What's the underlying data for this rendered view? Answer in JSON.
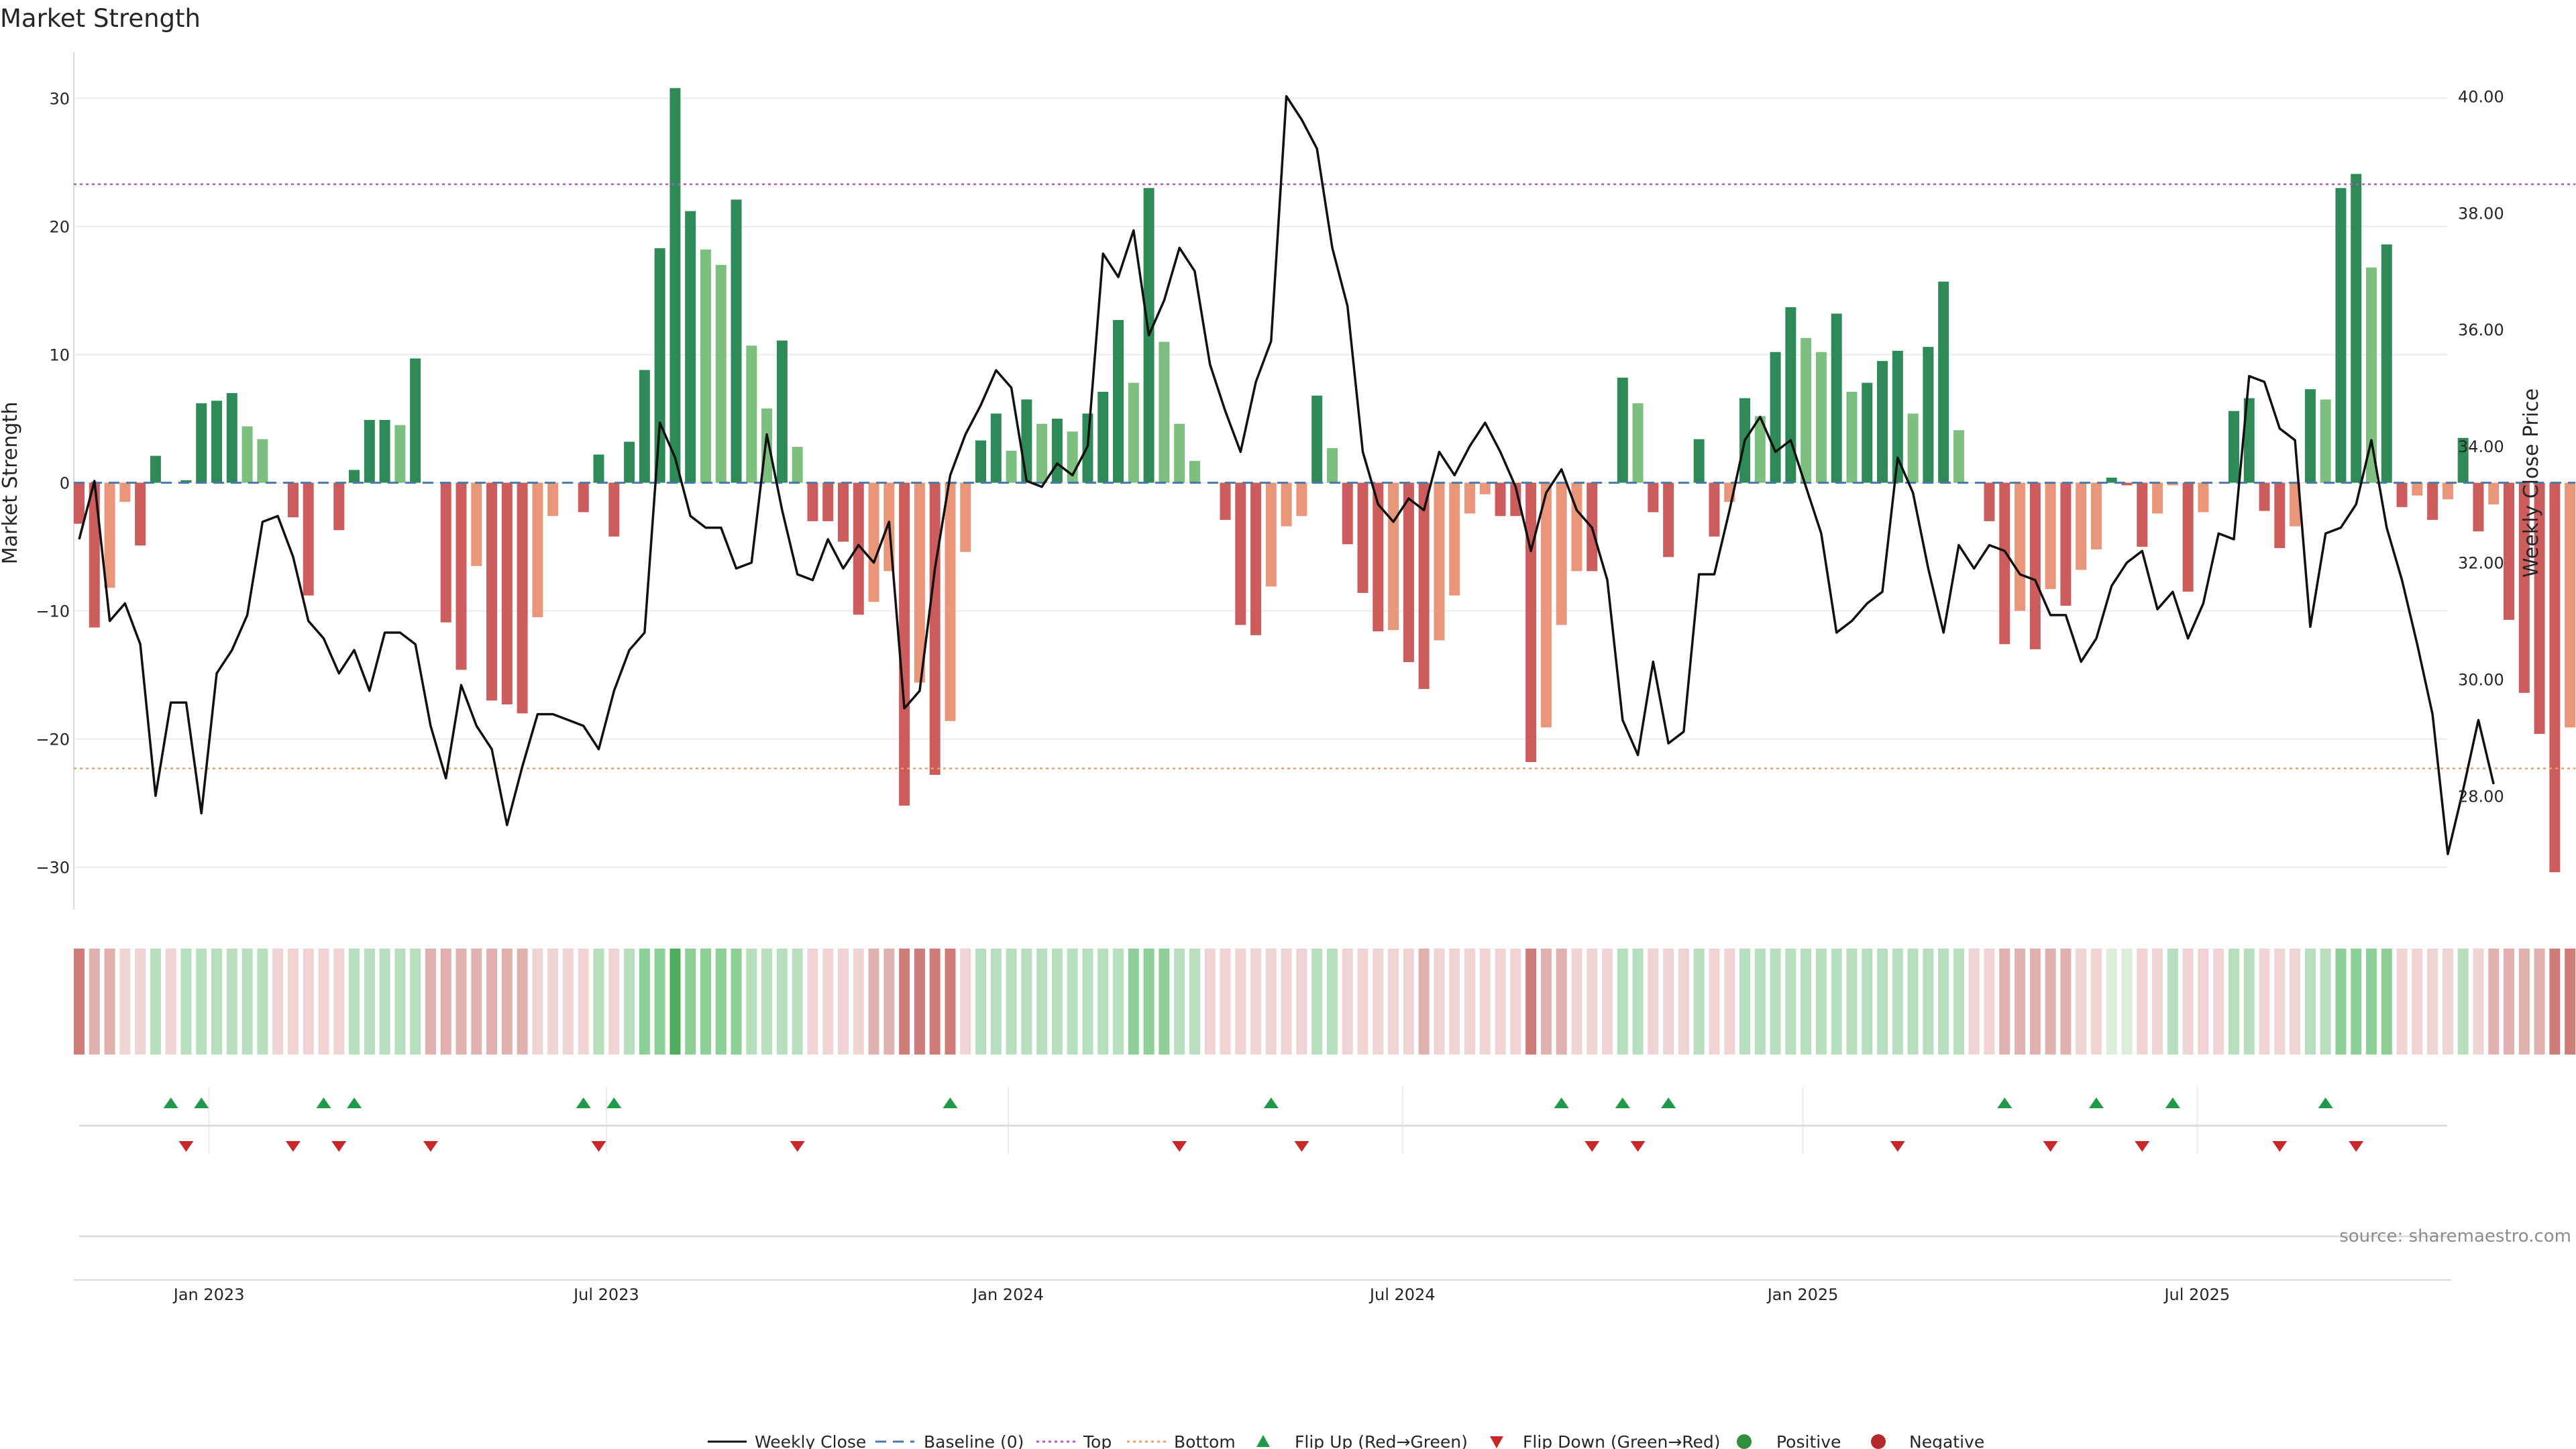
{
  "colors": {
    "price_line": "#111111",
    "baseline": "#4a78a8",
    "top_line": "#b05bc4",
    "bottom_line": "#e8a26a",
    "flip_up": "#1e9a48",
    "flip_down": "#c8282a",
    "positive": "#2f8f3a",
    "negative": "#b42a2a"
  },
  "chart_data": {
    "type": "bar",
    "title": "Market Strength",
    "ylabel_left": "Market Strength",
    "ylabel_right": "Weekly Close Price",
    "source": "source: sharemaestro.com",
    "ylim_left": [
      -33.5,
      31.5
    ],
    "ylim_right": [
      26.6,
      40.6
    ],
    "yticks_left": [
      "30",
      "20",
      "10",
      "0",
      "−10",
      "−20",
      "−30"
    ],
    "yticks_right": [
      "40.00",
      "38.00",
      "36.00",
      "34.00",
      "32.00",
      "30.00",
      "28.00"
    ],
    "x_ticks": [
      "Jan 2023",
      "Jul 2023",
      "Jan 2024",
      "Jul 2024",
      "Jan 2025",
      "Jul 2025"
    ],
    "x_tick_week_index": [
      8.5,
      34.5,
      60.8,
      86.6,
      112.8,
      138.6
    ],
    "top_level": 23.3,
    "bottom_level": -22.3,
    "strength": [
      -3.2,
      -11.3,
      -8.2,
      -1.5,
      -4.9,
      2.1,
      0,
      0.2,
      6.2,
      6.4,
      7.0,
      4.4,
      3.4,
      0,
      -2.7,
      -8.8,
      0,
      -3.7,
      1.0,
      4.9,
      4.9,
      4.5,
      9.7,
      0,
      -10.9,
      -14.6,
      -6.5,
      -17.0,
      -17.3,
      -18.0,
      -10.5,
      -2.6,
      0,
      -2.3,
      2.2,
      -4.2,
      3.2,
      8.8,
      18.3,
      30.8,
      21.2,
      18.2,
      17.0,
      22.1,
      10.7,
      5.8,
      11.1,
      2.8,
      -3.0,
      -3.0,
      -4.6,
      -10.3,
      -9.3,
      -6.9,
      -25.2,
      -15.6,
      -22.8,
      -18.6,
      -5.4,
      3.3,
      5.4,
      2.5,
      6.5,
      4.6,
      5.0,
      4.0,
      5.4,
      7.1,
      12.7,
      7.8,
      23.0,
      11.0,
      4.6,
      1.7,
      0,
      -2.9,
      -11.1,
      -11.9,
      -8.1,
      -3.4,
      -2.6,
      6.8,
      2.7,
      -4.8,
      -8.6,
      -11.6,
      -11.5,
      -14.0,
      -16.1,
      -12.3,
      -8.8,
      -2.4,
      -0.9,
      -2.6,
      -2.6,
      -21.8,
      -19.1,
      -11.1,
      -6.9,
      -6.9,
      0,
      8.2,
      6.2,
      -2.3,
      -5.8,
      0,
      3.4,
      -4.2,
      -1.5,
      6.6,
      5.2,
      10.2,
      13.7,
      11.3,
      10.2,
      13.2,
      7.1,
      7.8,
      9.5,
      10.3,
      5.4,
      10.6,
      15.7,
      4.1,
      0,
      -3.0,
      -12.6,
      -10.0,
      -13.0,
      -8.3,
      -9.6,
      -6.8,
      -5.2,
      0.4,
      -0.2,
      -5.0,
      -2.4,
      -0.2,
      -8.5,
      -2.3,
      0,
      5.6,
      6.6,
      -2.2,
      -5.1,
      -3.4,
      7.3,
      6.5,
      23.0,
      24.1,
      16.8,
      18.6,
      -1.9,
      -1.0,
      -2.9,
      -1.3,
      3.5,
      -3.8,
      -1.7,
      -10.7,
      -16.4,
      -19.6,
      -30.4,
      -19.1
    ],
    "price": [
      32.4,
      33.4,
      31.0,
      31.3,
      30.6,
      28.0,
      29.6,
      29.6,
      27.7,
      30.1,
      30.5,
      31.1,
      32.7,
      32.8,
      32.1,
      31.0,
      30.7,
      30.1,
      30.5,
      29.8,
      30.8,
      30.8,
      30.6,
      29.2,
      28.3,
      29.9,
      29.2,
      28.8,
      27.5,
      28.5,
      29.4,
      29.4,
      29.3,
      29.2,
      28.8,
      29.8,
      30.5,
      30.8,
      34.4,
      33.8,
      32.8,
      32.6,
      32.6,
      31.9,
      32.0,
      34.2,
      32.9,
      31.8,
      31.7,
      32.4,
      31.9,
      32.3,
      32.0,
      32.7,
      29.5,
      29.8,
      31.9,
      33.5,
      34.2,
      34.7,
      35.3,
      35.0,
      33.4,
      33.3,
      33.7,
      33.5,
      34.0,
      37.3,
      36.9,
      37.7,
      35.9,
      36.5,
      37.4,
      37.0,
      35.4,
      34.6,
      33.9,
      35.1,
      35.8,
      40.0,
      39.6,
      39.1,
      37.4,
      36.4,
      33.9,
      33.0,
      32.7,
      33.1,
      32.9,
      33.9,
      33.5,
      34.0,
      34.4,
      33.9,
      33.3,
      32.2,
      33.2,
      33.6,
      32.9,
      32.6,
      31.7,
      29.3,
      28.7,
      30.3,
      28.9,
      29.1,
      31.8,
      31.8,
      32.9,
      34.1,
      34.5,
      33.9,
      34.1,
      33.3,
      32.5,
      30.8,
      31.0,
      31.3,
      31.5,
      33.8,
      33.2,
      31.9,
      30.8,
      32.3,
      31.9,
      32.3,
      32.2,
      31.8,
      31.7,
      31.1,
      31.1,
      30.3,
      30.7,
      31.6,
      32.0,
      32.2,
      31.2,
      31.5,
      30.7,
      31.3,
      32.5,
      32.4,
      35.2,
      35.1,
      34.3,
      34.1,
      30.9,
      32.5,
      32.6,
      33.0,
      34.1,
      32.6,
      31.7,
      30.6,
      29.4,
      27.0,
      28.1,
      29.3,
      28.2
    ],
    "ribbon_tones": [
      "n3",
      "n2",
      "n2",
      "n1",
      "n1",
      "p1",
      "n1",
      "p1",
      "p1",
      "p1",
      "p1",
      "p1",
      "p1",
      "n1",
      "n1",
      "n1",
      "n1",
      "n1",
      "p1",
      "p1",
      "p1",
      "p1",
      "p1",
      "n2",
      "n2",
      "n2",
      "n2",
      "n2",
      "n2",
      "n2",
      "n1",
      "n1",
      "n1",
      "n1",
      "p1",
      "n1",
      "p1",
      "p2",
      "p2",
      "p3",
      "p2",
      "p2",
      "p2",
      "p2",
      "p1",
      "p1",
      "p1",
      "p1",
      "n1",
      "n1",
      "n1",
      "n1",
      "n2",
      "n2",
      "n3",
      "n3",
      "n3",
      "n3",
      "n1",
      "p1",
      "p1",
      "p1",
      "p1",
      "p1",
      "p1",
      "p1",
      "p1",
      "p1",
      "p1",
      "p2",
      "p2",
      "p2",
      "p1",
      "p1",
      "n1",
      "n1",
      "n1",
      "n1",
      "n1",
      "n1",
      "n1",
      "p1",
      "p1",
      "n1",
      "n1",
      "n1",
      "n1",
      "n1",
      "n2",
      "n1",
      "n1",
      "n1",
      "n1",
      "n1",
      "n1",
      "n3",
      "n2",
      "n2",
      "n1",
      "n1",
      "n1",
      "p1",
      "p1",
      "n1",
      "n1",
      "n1",
      "p1",
      "n1",
      "n1",
      "p1",
      "p1",
      "p1",
      "p1",
      "p1",
      "p1",
      "p1",
      "p1",
      "p1",
      "p1",
      "p1",
      "p1",
      "p1",
      "p1",
      "p1",
      "n1",
      "n1",
      "n2",
      "n2",
      "n2",
      "n2",
      "n2",
      "n1",
      "n1",
      "p0",
      "p0",
      "n1",
      "n1",
      "p1",
      "n1",
      "n1",
      "n1",
      "p1",
      "p1",
      "n1",
      "n1",
      "n1",
      "p1",
      "p1",
      "p2",
      "p2",
      "p2",
      "p2",
      "n1",
      "n1",
      "n1",
      "n1",
      "p1",
      "n1",
      "n2",
      "n2",
      "n2",
      "n2",
      "n3",
      "n3",
      "n2"
    ],
    "flip_up_weeks": [
      6,
      8,
      16,
      18,
      33,
      35,
      57,
      78,
      97,
      101,
      104,
      126,
      132,
      137,
      147
    ],
    "flip_down_weeks": [
      7,
      14,
      17,
      23,
      34,
      47,
      72,
      80,
      99,
      102,
      119,
      129,
      135,
      144,
      149
    ],
    "legend": [
      "Weekly Close",
      "Baseline (0)",
      "Top",
      "Bottom",
      "Flip Up (Red→Green)",
      "Flip Down (Green→Red)",
      "Positive",
      "Negative"
    ]
  }
}
